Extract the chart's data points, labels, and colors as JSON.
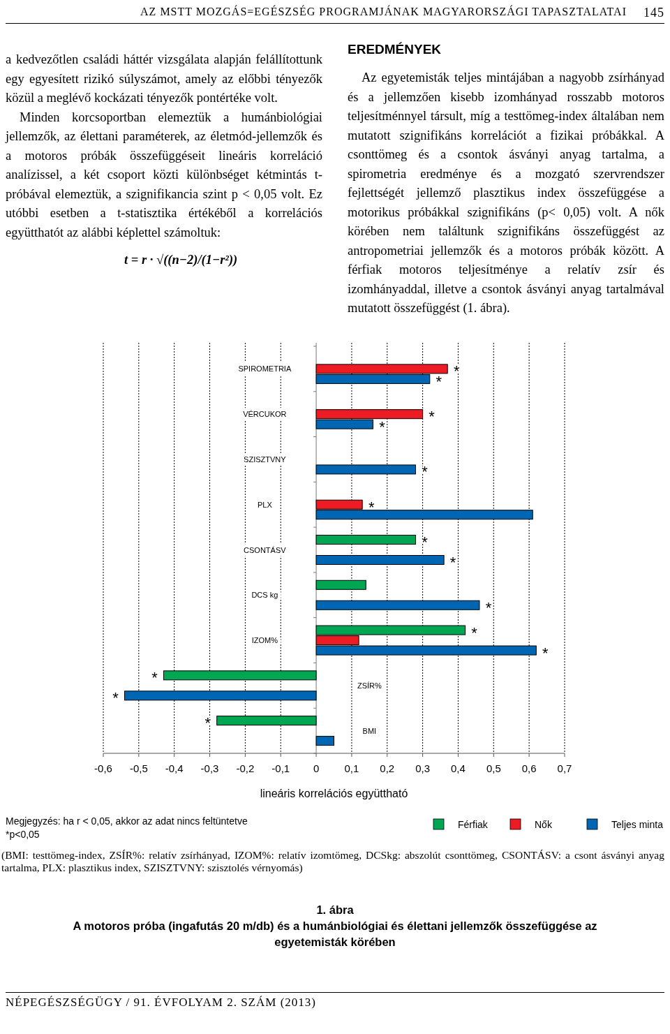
{
  "chart_data": {
    "type": "bar",
    "orientation": "horizontal",
    "title": "1. ábra",
    "subtitle": "A motoros próba (ingafutás 20 m/db) és a humánbiológiai és élettani jellemzők összefüggése az egyetemisták körében",
    "xlabel": "lineáris korrelációs együttható",
    "categories": [
      "SPIROMETRIA",
      "VÉRCUKOR",
      "SZISZTVNY",
      "PLX",
      "CSONTÁSV",
      "DCS kg",
      "IZOM%",
      "ZSÍR%",
      "BMI"
    ],
    "series": [
      {
        "name": "Férfiak",
        "color": "#00a651",
        "values": [
          null,
          null,
          null,
          null,
          0.28,
          0.14,
          0.42,
          -0.43,
          -0.28
        ],
        "value_labels": [
          null,
          null,
          null,
          null,
          "*",
          null,
          "*",
          "*",
          "*"
        ]
      },
      {
        "name": "Nők",
        "color": "#ed1c24",
        "values": [
          0.37,
          0.3,
          null,
          0.13,
          null,
          null,
          0.12,
          null,
          null
        ],
        "value_labels": [
          "*",
          "*",
          null,
          "*",
          null,
          null,
          null,
          null,
          null
        ]
      },
      {
        "name": "Teljes minta",
        "color": "#0066b3",
        "values": [
          0.32,
          0.16,
          0.28,
          0.61,
          0.36,
          0.46,
          0.62,
          -0.54,
          0.05
        ],
        "value_labels": [
          "*",
          "*",
          "*",
          null,
          "*",
          "*",
          "*",
          "*",
          null
        ]
      }
    ],
    "xlim": [
      -0.6,
      0.7
    ],
    "xticks": [
      {
        "value": -0.6,
        "label": "-0,6"
      },
      {
        "value": -0.5,
        "label": "-0,5"
      },
      {
        "value": -0.4,
        "label": "-0,4"
      },
      {
        "value": -0.3,
        "label": "-0,3"
      },
      {
        "value": -0.2,
        "label": "-0,2"
      },
      {
        "value": -0.1,
        "label": "-0,1"
      },
      0,
      {
        "value": 0.1,
        "label": "0,1"
      },
      {
        "value": 0.2,
        "label": "0,2"
      },
      {
        "value": 0.3,
        "label": "0,3"
      },
      {
        "value": 0.4,
        "label": "0,4"
      },
      {
        "value": 0.5,
        "label": "0,5"
      },
      {
        "value": 0.6,
        "label": "0,6"
      },
      {
        "value": 0.7,
        "label": "0,7"
      }
    ],
    "grid": "x",
    "legend": "bottom right",
    "annotations": [
      "AZ MSTT MOZGÁS=EGÉSZSÉG PROGRAMJÁNAK MAGYARORSZÁGI TAPASZTALATAI",
      "145",
      "a kedvezőtlen családi háttér vizsgálata alapján felállítottunk egy egyesített rizikó súlyszámot, amely az előbbi tényezők közül a meglévő kockázati tényezők pontértéke volt.",
      "Minden korcsoportban elemeztük a humánbiológiai jellemzők, az élettani paraméterek, az életmód-jellemzők és a motoros próbák összefüggéseit lineáris korreláció analízissel, a két csoport közti különbséget kétmintás t-próbával elemeztük, a szignifikancia szint p < 0,05 volt. Ez utóbbi esetben a t-statisztika értékéből a korrelációs együtthatót az alábbi képlettel számoltuk:",
      "t = r · √((n−2)/(1−r²))",
      "EREDMÉNYEK",
      "Az egyetemisták teljes mintájában a nagyobb zsírhányad és a jellemzően kisebb izomhányad rosszabb motoros teljesítménnyel társult, míg a testtömeg-index általában nem mutatott szignifikáns korrelációt a fizikai próbákkal. A csonttömeg és a csontok ásványi anyag tartalma, a spirometria eredménye és a mozgató szervrendszer fejlettségét jellemző plasztikus index összefüggése a motorikus próbákkal szignifikáns (p< 0,05) volt. A nők körében nem találtunk szignifikáns összefüggést az antropometriai jellemzők és a motoros próbák között. A férfiak motoros teljesítménye a relatív zsír és izomhányaddal, illetve a csontok ásványi anyag tartalmával mutatott összefüggést (1. ábra).",
      "Megjegyzés: ha r < 0,05, akkor az adat nincs feltüntetve",
      "*p<0,05",
      "(BMI: testtömeg-index, ZSÍR%: relatív zsírhányad, IZOM%: relatív izomtömeg, DCSkg: abszolút csonttömeg, CSONTÁSV: a csont ásványi anyag tartalma, PLX: plasztikus index, SZISZTVNY: szisztolés vérnyomás)",
      "NÉPEGÉSZSÉGÜGY / 91. ÉVFOLYAM 2. SZÁM (2013)"
    ]
  }
}
